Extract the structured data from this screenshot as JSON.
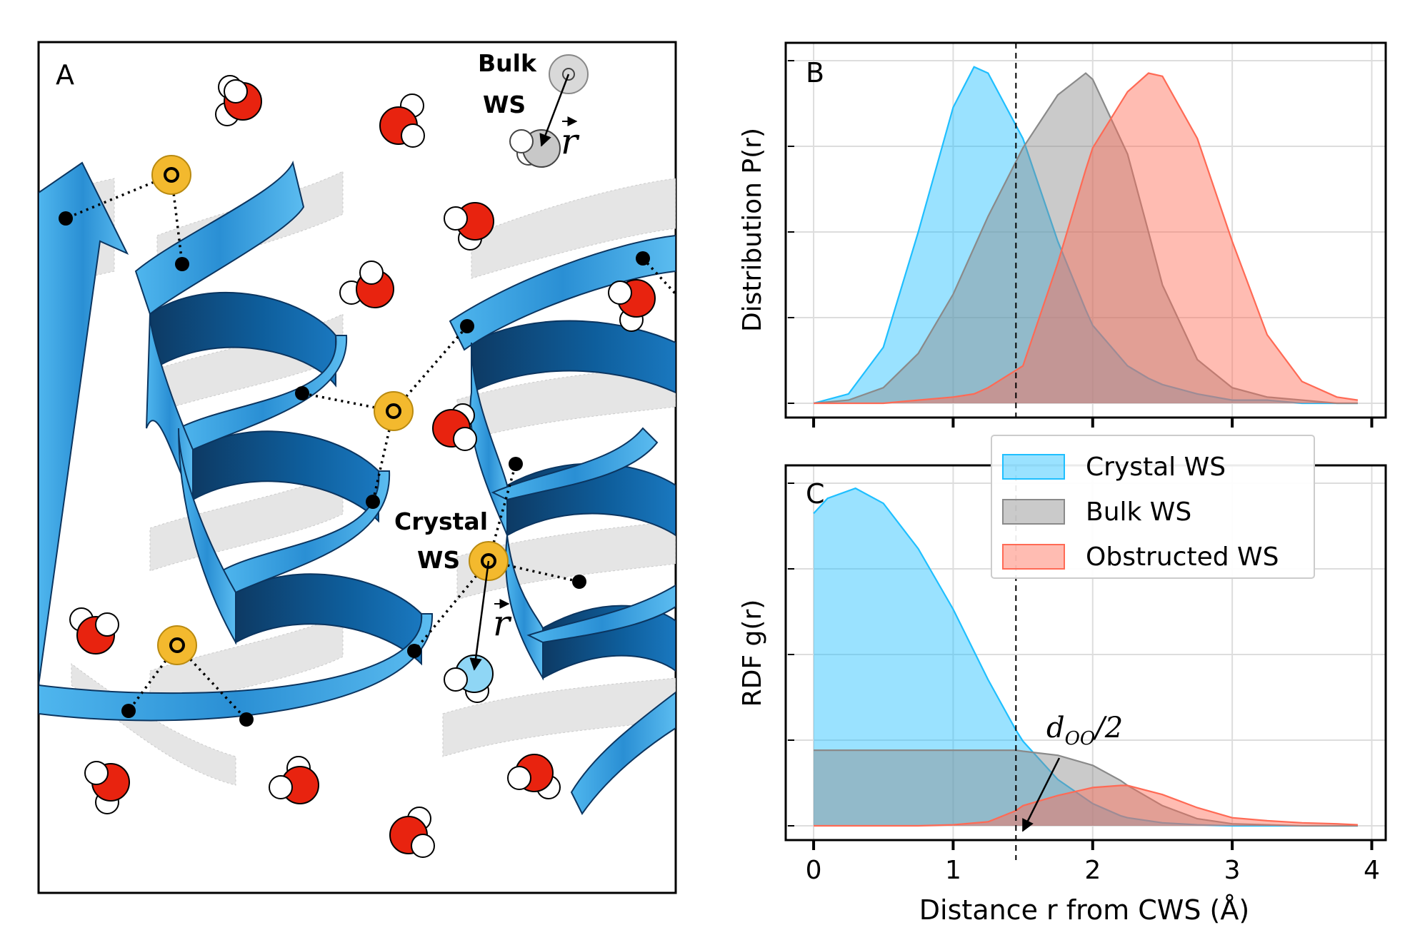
{
  "panel_a": {
    "label": "A",
    "bulk_label_line1": "Bulk",
    "bulk_label_line2": "WS",
    "crystal_label_line1": "Crystal",
    "crystal_label_line2": "WS",
    "vector_symbol": "r",
    "colors": {
      "helix_light": "#5bbcf0",
      "helix_dark": "#0b4f86",
      "water_oxygen": "#e8230f",
      "water_hydrogen": "#ffffff",
      "crystal_site": "#f3b92e",
      "bulk_site": "#d0d0d0",
      "displaced_water": "#8fd6f5"
    },
    "icons": [
      "helix-ribbon",
      "water-molecule",
      "crystal-water-site",
      "bulk-water-site",
      "displacement-arrow"
    ]
  },
  "panel_b": {
    "label": "B",
    "ylabel": "Distribution P(r)"
  },
  "panel_c": {
    "label": "C",
    "ylabel": "RDF g(r)",
    "annotation": "d_OO/2",
    "annotation_main": "d",
    "annotation_sub": "OO",
    "annotation_tail": "/2"
  },
  "shared": {
    "xlabel": "Distance r from CWS (Å)",
    "xticks": [
      "0",
      "1",
      "2",
      "3",
      "4"
    ]
  },
  "legend": {
    "entries": [
      "Crystal WS",
      "Bulk WS",
      "Obstructed WS"
    ]
  },
  "chart_data": [
    {
      "type": "area",
      "panel": "B",
      "title": "",
      "xlabel": "",
      "ylabel": "Distribution P(r)",
      "xlim": [
        -0.2,
        4.1
      ],
      "ylim": [
        0,
        1.1
      ],
      "grid": true,
      "vline_x": 1.45,
      "colors": [
        "#1fbfff",
        "#8a8a8a",
        "#ff6a55"
      ],
      "x": [
        0,
        0.25,
        0.5,
        0.75,
        1.0,
        1.15,
        1.25,
        1.5,
        1.75,
        1.95,
        2.0,
        2.25,
        2.4,
        2.5,
        2.75,
        3.0,
        3.25,
        3.5,
        3.75,
        3.9
      ],
      "series": [
        {
          "name": "Crystal WS",
          "values": [
            0.0,
            0.03,
            0.18,
            0.55,
            0.95,
            1.08,
            1.06,
            0.85,
            0.52,
            0.3,
            0.25,
            0.12,
            0.08,
            0.06,
            0.03,
            0.01,
            0.01,
            0.0,
            0.0,
            0.0
          ]
        },
        {
          "name": "Bulk WS",
          "values": [
            0.0,
            0.01,
            0.05,
            0.16,
            0.35,
            0.5,
            0.6,
            0.82,
            0.99,
            1.06,
            1.04,
            0.8,
            0.55,
            0.38,
            0.14,
            0.05,
            0.02,
            0.01,
            0.0,
            0.0
          ]
        },
        {
          "name": "Obstructed WS",
          "values": [
            0.0,
            0.0,
            0.0,
            0.01,
            0.02,
            0.03,
            0.05,
            0.12,
            0.45,
            0.75,
            0.82,
            1.0,
            1.06,
            1.05,
            0.85,
            0.52,
            0.22,
            0.07,
            0.02,
            0.01
          ]
        }
      ]
    },
    {
      "type": "area",
      "panel": "C",
      "title": "",
      "xlabel": "Distance r from CWS (Å)",
      "ylabel": "RDF g(r)",
      "xlim": [
        -0.2,
        4.1
      ],
      "ylim": [
        0,
        3.4
      ],
      "grid": true,
      "legend_position": "top-right",
      "vline_x": 1.45,
      "colors": [
        "#1fbfff",
        "#8a8a8a",
        "#ff6a55"
      ],
      "x": [
        0,
        0.1,
        0.3,
        0.5,
        0.75,
        1.0,
        1.25,
        1.45,
        1.5,
        1.75,
        2.0,
        2.2,
        2.25,
        2.5,
        2.75,
        3.0,
        3.25,
        3.5,
        3.75,
        3.9
      ],
      "series": [
        {
          "name": "Crystal WS",
          "values": [
            3.1,
            3.25,
            3.35,
            3.2,
            2.75,
            2.15,
            1.45,
            0.95,
            0.84,
            0.46,
            0.22,
            0.1,
            0.08,
            0.03,
            0.01,
            0.0,
            0.0,
            0.0,
            0.0,
            0.0
          ]
        },
        {
          "name": "Bulk WS",
          "values": [
            0.75,
            0.75,
            0.75,
            0.75,
            0.75,
            0.75,
            0.75,
            0.75,
            0.74,
            0.7,
            0.6,
            0.45,
            0.4,
            0.2,
            0.07,
            0.02,
            0.01,
            0.0,
            0.0,
            0.0
          ]
        },
        {
          "name": "Obstructed WS",
          "values": [
            0.0,
            0.0,
            0.0,
            0.0,
            0.0,
            0.01,
            0.04,
            0.15,
            0.2,
            0.3,
            0.38,
            0.4,
            0.4,
            0.31,
            0.18,
            0.08,
            0.05,
            0.03,
            0.02,
            0.01
          ]
        }
      ]
    }
  ]
}
